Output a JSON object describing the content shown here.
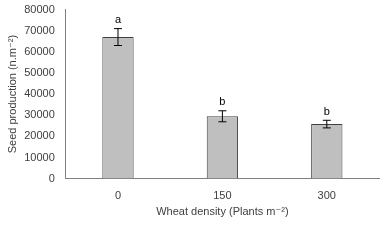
{
  "chart_data": {
    "type": "bar",
    "categories": [
      "0",
      "150",
      "300"
    ],
    "values": [
      67000,
      29500,
      25800
    ],
    "errors": [
      4000,
      2600,
      1800
    ],
    "annotations": [
      "a",
      "b",
      "b"
    ],
    "color": "#bfbfbf",
    "xlabel": "Wheat density (Plants m⁻²)",
    "ylabel": "Seed production (n.m⁻²)",
    "ylim": [
      0,
      80000
    ],
    "yticks": [
      0,
      10000,
      20000,
      30000,
      40000,
      50000,
      60000,
      70000,
      80000
    ],
    "grid": false
  }
}
